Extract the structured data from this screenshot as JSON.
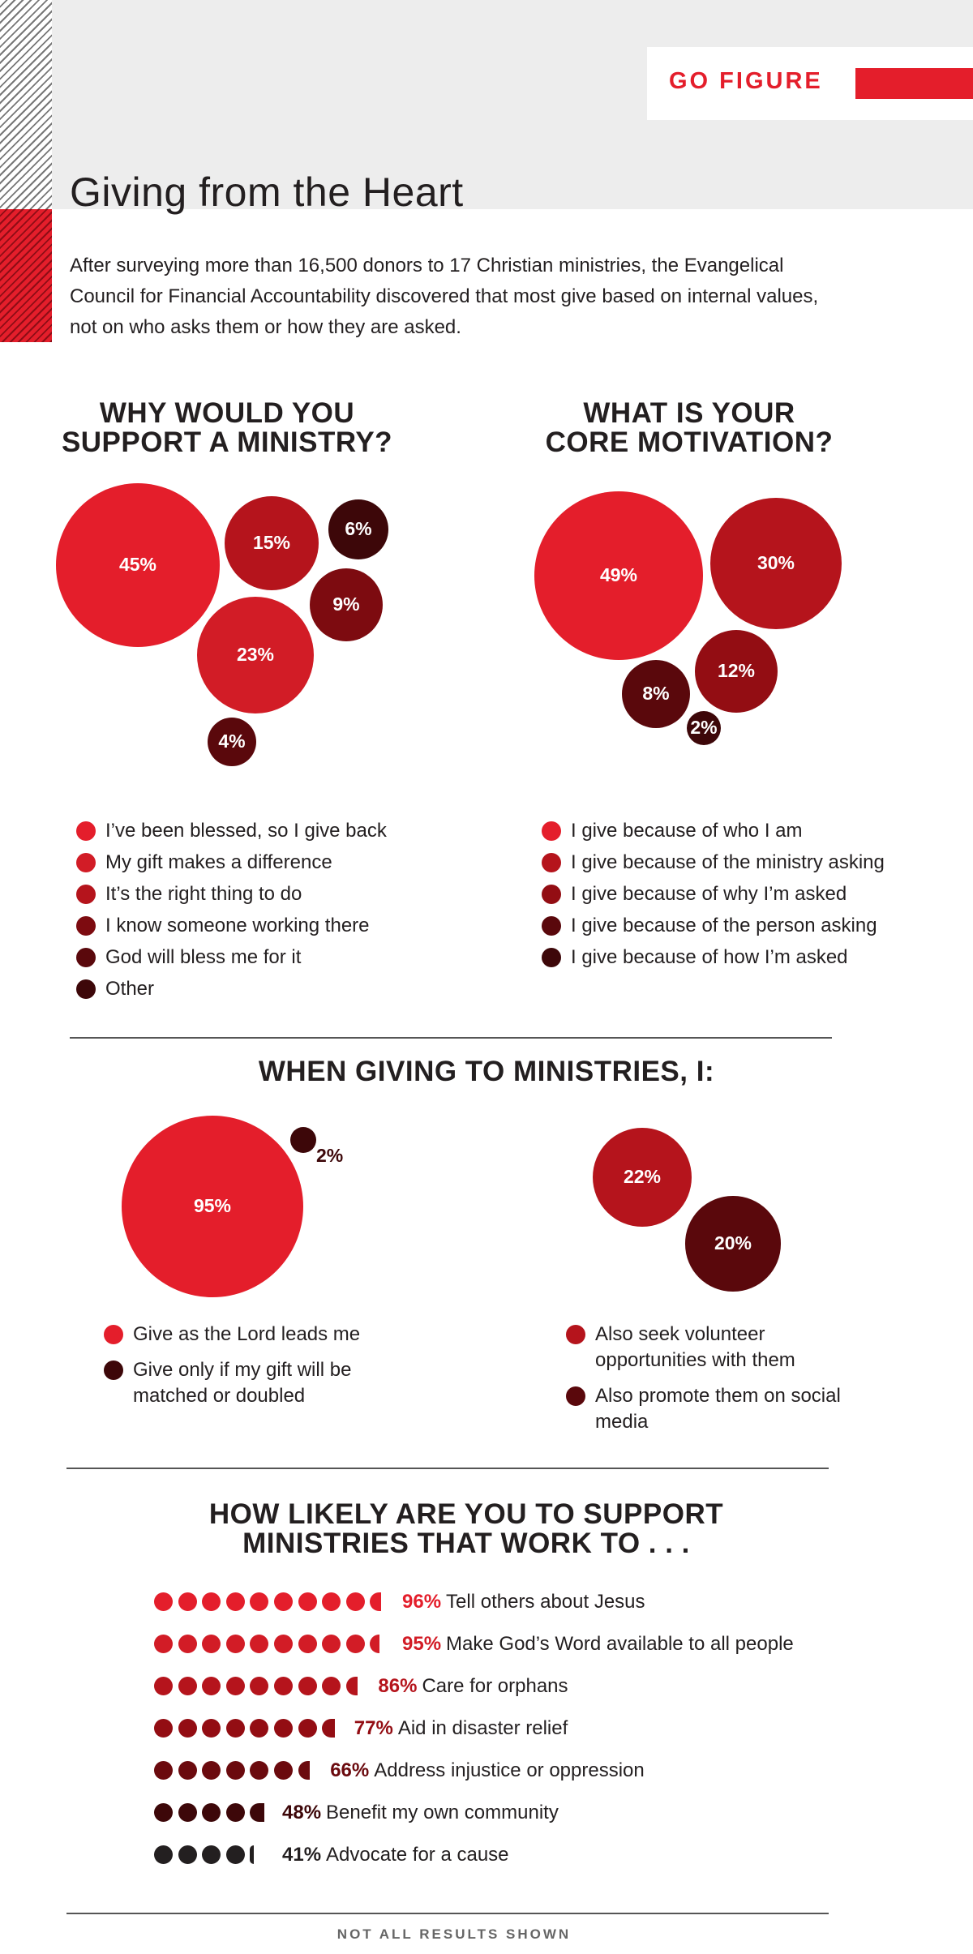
{
  "header": {
    "go_figure": "GO FIGURE",
    "title": "Giving from the Heart",
    "intro": "After surveying more than 16,500 donors to 17 Christian ministries, the Evangelical Council for Financial Accountability discovered that most give based on internal values, not on who asks them or how they are asked."
  },
  "colors": {
    "red": "#e41e2b",
    "crimson": "#c4161f",
    "dark_red": "#930d13",
    "maroon": "#6b0a0e",
    "deep": "#3d0709",
    "charcoal": "#231f20"
  },
  "chart_data": [
    {
      "type": "bubble",
      "title_lines": [
        "WHY WOULD YOU",
        "SUPPORT A MINISTRY?"
      ],
      "categories": [
        "I’ve been blessed, so I give back",
        "My gift makes a difference",
        "It’s the right thing to do",
        "I know someone working there",
        "God will bless me for it",
        "Other"
      ],
      "values": [
        45,
        23,
        15,
        9,
        6,
        4
      ],
      "labels": [
        "45%",
        "23%",
        "15%",
        "9%",
        "6%",
        "4%"
      ],
      "legend_colors": [
        "#e41e2b",
        "#d21c26",
        "#b5141c",
        "#7d0b10",
        "#5a080c",
        "#3d0709"
      ],
      "bubble_colors": [
        "#e41e2b",
        "#d21c26",
        "#b5141c",
        "#7d0b10",
        "#3d0709",
        "#5a080c"
      ],
      "unit": "%"
    },
    {
      "type": "bubble",
      "title_lines": [
        "WHAT IS YOUR",
        "CORE MOTIVATION?"
      ],
      "categories": [
        "I give because of who I am",
        "I give because of the ministry asking",
        "I give because of why I’m asked",
        "I give because of the person asking",
        "I give because of how I’m asked"
      ],
      "values": [
        49,
        30,
        12,
        8,
        2
      ],
      "labels": [
        "49%",
        "30%",
        "12%",
        "8%",
        "2%"
      ],
      "legend_colors": [
        "#e41e2b",
        "#b5141c",
        "#930d13",
        "#5a080c",
        "#3d0709"
      ],
      "bubble_colors": [
        "#e41e2b",
        "#b5141c",
        "#930d13",
        "#5a080c",
        "#3d0709"
      ],
      "unit": "%"
    },
    {
      "type": "bubble",
      "title": "WHEN GIVING TO MINISTRIES, I:",
      "groups": [
        {
          "categories": [
            "Give as the Lord leads me",
            "Give only if my gift will be matched or doubled"
          ],
          "values": [
            95,
            2
          ],
          "labels": [
            "95%",
            "2%"
          ],
          "colors": [
            "#e41e2b",
            "#3d0709"
          ]
        },
        {
          "categories": [
            "Also seek volunteer opportunities with them",
            "Also promote them on social media"
          ],
          "values": [
            22,
            20
          ],
          "labels": [
            "22%",
            "20%"
          ],
          "colors": [
            "#b5141c",
            "#5a080c"
          ]
        }
      ],
      "unit": "%"
    },
    {
      "type": "dot-bar",
      "title_lines": [
        "HOW LIKELY ARE YOU TO SUPPORT",
        "MINISTRIES THAT WORK TO . . ."
      ],
      "categories": [
        "Tell others about Jesus",
        "Make God’s Word available to all people",
        "Care for orphans",
        "Aid in disaster relief",
        "Address injustice or oppression",
        "Benefit my own community",
        "Advocate for a cause"
      ],
      "values": [
        96,
        95,
        86,
        77,
        66,
        48,
        41
      ],
      "labels": [
        "96%",
        "95%",
        "86%",
        "77%",
        "66%",
        "48%",
        "41%"
      ],
      "colors": [
        "#e41e2b",
        "#d21c26",
        "#b5141c",
        "#930d13",
        "#6b0a0e",
        "#3d0709",
        "#231f20"
      ],
      "unit": "%",
      "dot_value": 10
    }
  ],
  "footer": {
    "note": "NOT ALL RESULTS SHOWN"
  }
}
